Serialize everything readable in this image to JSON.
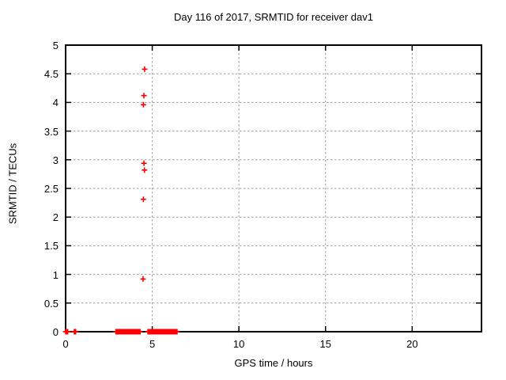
{
  "chart_data": {
    "type": "scatter",
    "title": "Day 116 of 2017, SRMTID for receiver dav1",
    "xlabel": "GPS time / hours",
    "ylabel": "SRMTID / TECUs",
    "xlim": [
      0,
      24
    ],
    "ylim": [
      0,
      5
    ],
    "xticks": [
      0,
      5,
      10,
      15,
      20
    ],
    "xtick_labels": [
      "0",
      "5",
      "10",
      "15",
      "20"
    ],
    "yticks": [
      0,
      0.5,
      1,
      1.5,
      2,
      2.5,
      3,
      3.5,
      4,
      4.5,
      5
    ],
    "ytick_labels": [
      "0",
      "0.5",
      "1",
      "1.5",
      "2",
      "2.5",
      "3",
      "3.5",
      "4",
      "4.5",
      "5"
    ],
    "grid": true,
    "legend": "none",
    "marker": "plus",
    "marker_color": "#ff0000",
    "grid_color": "#9e9e9e",
    "border_color": "#000000",
    "series": [
      {
        "name": "SRMTID",
        "points": [
          [
            4.56,
            4.58
          ],
          [
            4.52,
            4.12
          ],
          [
            4.49,
            3.96
          ],
          [
            4.52,
            2.94
          ],
          [
            4.55,
            2.82
          ],
          [
            4.49,
            2.31
          ],
          [
            4.47,
            0.92
          ]
        ]
      }
    ],
    "zero_line_segments": [
      [
        0.0,
        0.12
      ],
      [
        0.5,
        0.58
      ],
      [
        2.9,
        4.3
      ],
      [
        4.75,
        6.45
      ]
    ],
    "zero_segment_marker_step": 0.04
  }
}
